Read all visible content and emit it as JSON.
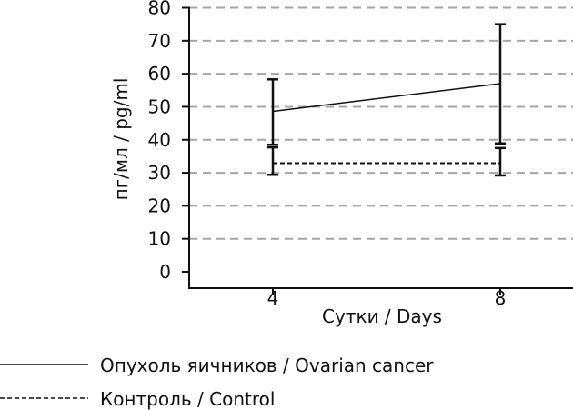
{
  "chart_data": {
    "type": "line",
    "title": "",
    "xlabel": "Сутки / Days",
    "ylabel": "пг/мл / pg/ml",
    "x": [
      4,
      8
    ],
    "x_ticks": [
      "4",
      "8"
    ],
    "ylim": [
      0,
      80
    ],
    "y_ticks": [
      0,
      10,
      20,
      30,
      40,
      50,
      60,
      70,
      80
    ],
    "grid": true,
    "legend_position": "bottom-left",
    "series": [
      {
        "name": "Опухоль яичников / Ovarian cancer",
        "style": "solid",
        "values": [
          48.6,
          57.0
        ],
        "err_low": [
          38.5,
          38.9
        ],
        "err_high": [
          58.3,
          75.0
        ]
      },
      {
        "name": "Контроль / Control",
        "style": "dashed",
        "values": [
          32.9,
          32.9
        ],
        "err_low": [
          29.4,
          29.2
        ],
        "err_high": [
          37.7,
          37.5
        ]
      }
    ]
  }
}
